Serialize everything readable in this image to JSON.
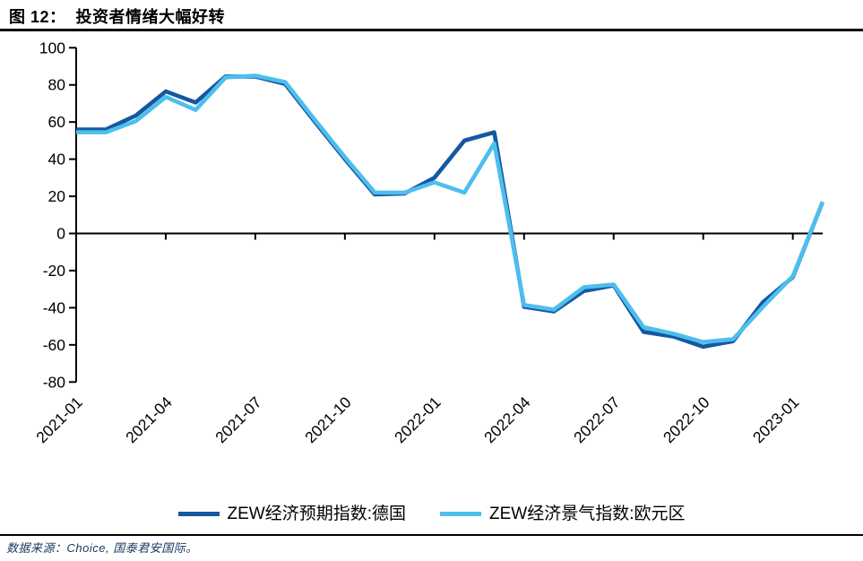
{
  "figure": {
    "title": "图 12：  投资者情绪大幅好转",
    "source": "数据来源：Choice, 国泰君安国际。"
  },
  "chart_data": {
    "type": "line",
    "x": [
      "2021-01",
      "2021-02",
      "2021-03",
      "2021-04",
      "2021-05",
      "2021-06",
      "2021-07",
      "2021-08",
      "2021-09",
      "2021-10",
      "2021-11",
      "2021-12",
      "2022-01",
      "2022-02",
      "2022-03",
      "2022-04",
      "2022-05",
      "2022-06",
      "2022-07",
      "2022-08",
      "2022-09",
      "2022-10",
      "2022-11",
      "2022-12",
      "2023-01",
      "2023-02"
    ],
    "series": [
      {
        "name": "ZEW经济预期指数:德国",
        "color": "#1458A0",
        "values": [
          56,
          56,
          63.5,
          76.5,
          70.5,
          84.5,
          84.5,
          80.5,
          60,
          40,
          21,
          21.5,
          30,
          50,
          54.5,
          -39.5,
          -42,
          -31,
          -28,
          -53,
          -55.5,
          -61,
          -58,
          -37,
          -23.5,
          17
        ]
      },
      {
        "name": "ZEW经济景气指数:欧元区",
        "color": "#4DBEEE",
        "values": [
          54.5,
          54.5,
          60.5,
          73.5,
          66.5,
          84,
          85,
          81.5,
          61,
          41,
          22,
          22,
          27.5,
          22,
          48.5,
          -38.5,
          -41,
          -29,
          -27.5,
          -50.5,
          -54,
          -58.5,
          -57,
          -39.5,
          -23,
          17
        ]
      }
    ],
    "xtick_labels": [
      "2021-01",
      "2021-04",
      "2021-07",
      "2021-10",
      "2022-01",
      "2022-04",
      "2022-07",
      "2022-10",
      "2023-01"
    ],
    "xtick_indices": [
      0,
      3,
      6,
      9,
      12,
      15,
      18,
      21,
      24
    ],
    "yticks": [
      100,
      80,
      60,
      40,
      20,
      0,
      -20,
      -40,
      -60,
      -80
    ],
    "ylim": [
      -80,
      100
    ],
    "grid": false,
    "legend_position": "bottom",
    "axis_color": "#000000",
    "title": "图 12：  投资者情绪大幅好转",
    "xlabel": "",
    "ylabel": ""
  }
}
